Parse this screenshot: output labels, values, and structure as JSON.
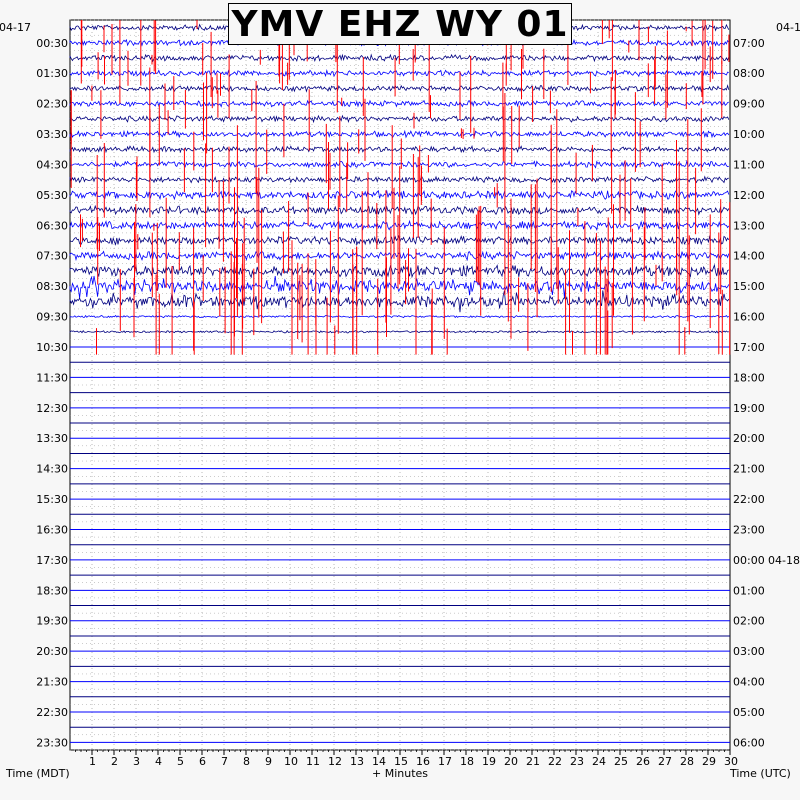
{
  "chart_data": {
    "type": "helicorder",
    "title": "YMV EHZ WY 01",
    "left_date": "04-17",
    "right_date": "04-1",
    "right_date_mid": "04-18",
    "left_axis_label": "Time (MDT)",
    "right_axis_label": "Time (UTC)",
    "x_axis_label": "+ Minutes",
    "x_ticks": [
      "1",
      "2",
      "3",
      "4",
      "5",
      "6",
      "7",
      "8",
      "9",
      "10",
      "11",
      "12",
      "13",
      "14",
      "15",
      "16",
      "17",
      "18",
      "19",
      "20",
      "21",
      "22",
      "23",
      "24",
      "25",
      "26",
      "27",
      "28",
      "29",
      "30"
    ],
    "x_range": [
      0,
      30
    ],
    "left_time_labels": [
      "00:30",
      "01:30",
      "02:30",
      "03:30",
      "04:30",
      "05:30",
      "06:30",
      "07:30",
      "08:30",
      "09:30",
      "10:30",
      "11:30",
      "12:30",
      "13:30",
      "14:30",
      "15:30",
      "16:30",
      "17:30",
      "18:30",
      "19:30",
      "20:30",
      "21:30",
      "22:30",
      "23:30"
    ],
    "right_time_labels": [
      "07:00",
      "08:00",
      "09:00",
      "10:00",
      "11:00",
      "12:00",
      "13:00",
      "14:00",
      "15:00",
      "16:00",
      "17:00",
      "18:00",
      "19:00",
      "20:00",
      "21:00",
      "22:00",
      "23:00",
      "00:00",
      "01:00",
      "02:00",
      "03:00",
      "04:00",
      "05:00",
      "06:00"
    ],
    "trace_rows": 48,
    "active_rows": 21,
    "trace_colors": [
      "#000080",
      "#0000ff"
    ],
    "clip_color": "#ff0000",
    "grid": true
  }
}
